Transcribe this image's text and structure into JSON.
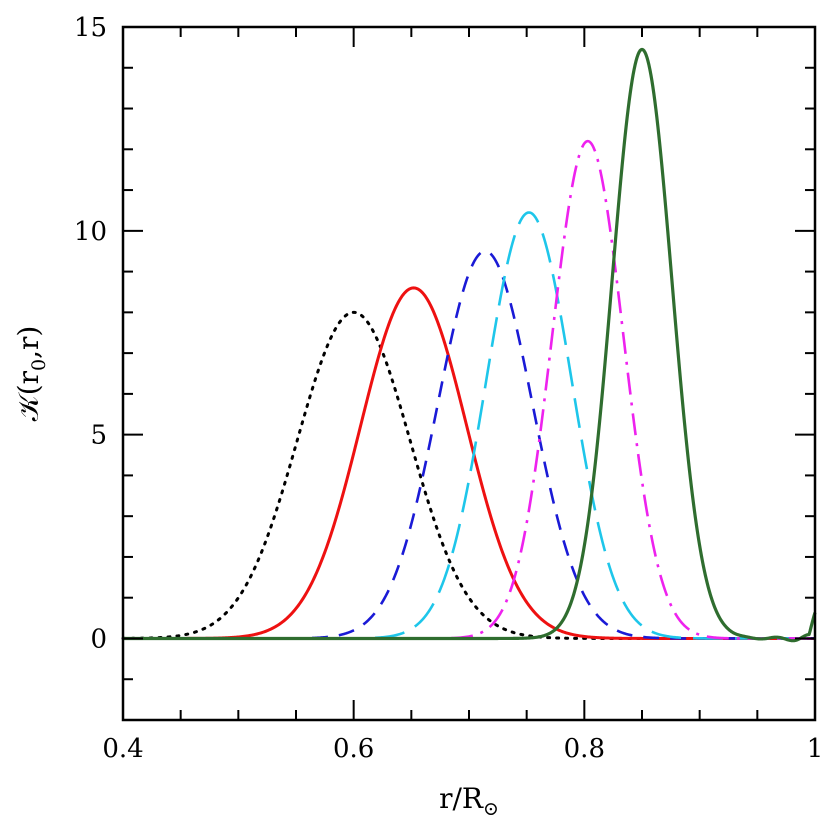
{
  "chart_data": {
    "type": "line",
    "xlabel": {
      "main": "r/R",
      "sub": "⊙"
    },
    "ylabel": {
      "pre": "𝒦(r",
      "sub": "0",
      "post": ",r)"
    },
    "xlim": [
      0.4,
      1.0
    ],
    "ylim": [
      -2,
      15
    ],
    "x_ticks": [
      {
        "value": 0.4,
        "label": "0.4"
      },
      {
        "value": 0.6,
        "label": "0.6"
      },
      {
        "value": 0.8,
        "label": "0.8"
      },
      {
        "value": 1.0,
        "label": "1"
      }
    ],
    "y_ticks": [
      {
        "value": 0,
        "label": "0"
      },
      {
        "value": 5,
        "label": "5"
      },
      {
        "value": 10,
        "label": "10"
      },
      {
        "value": 15,
        "label": "15"
      }
    ],
    "x_minor_step": 0.05,
    "y_minor_step": 1,
    "grid": false,
    "series": [
      {
        "color": "#000000",
        "dash": "dotted",
        "center": 0.6,
        "peak": 8.0,
        "sigma": 0.049
      },
      {
        "color": "#ee1111",
        "dash": "solid",
        "center": 0.652,
        "peak": 8.6,
        "sigma": 0.046
      },
      {
        "color": "#1a1ad6",
        "dash": "dashed",
        "center": 0.714,
        "peak": 9.5,
        "sigma": 0.041
      },
      {
        "color": "#1ec6ea",
        "dash": "longdash",
        "center": 0.752,
        "peak": 10.45,
        "sigma": 0.037
      },
      {
        "color": "#ee22ee",
        "dash": "dashdot",
        "center": 0.803,
        "peak": 12.2,
        "sigma": 0.031
      },
      {
        "color": "#2f6d2f",
        "dash": "solid-thick",
        "center": 0.85,
        "peak": 14.45,
        "sigma": 0.026
      }
    ]
  }
}
